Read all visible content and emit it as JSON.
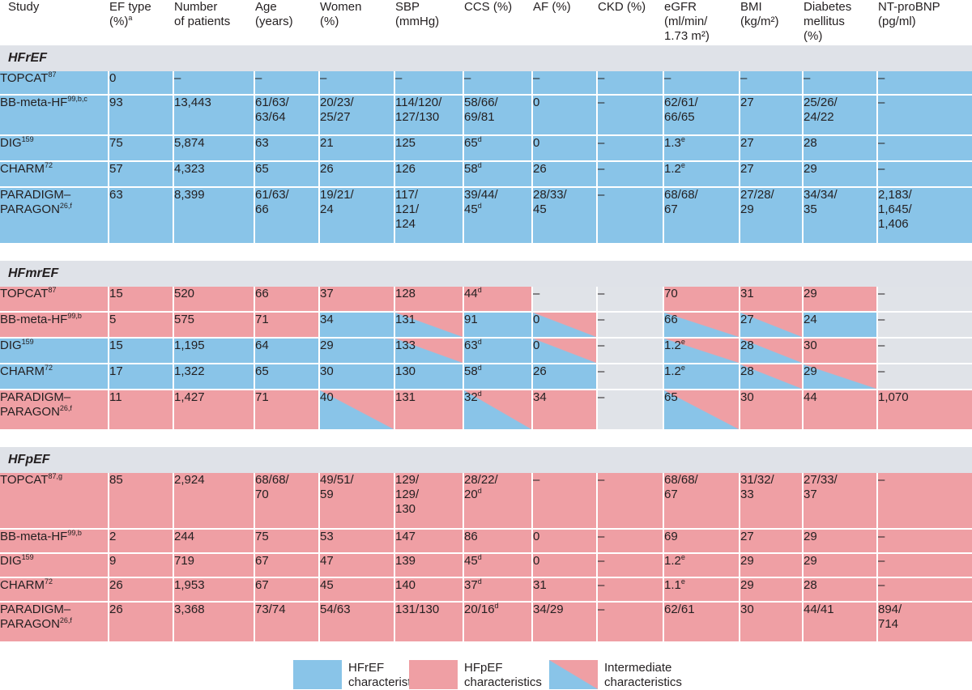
{
  "headers": {
    "study": "Study",
    "ef_type": [
      "EF type",
      "(%)"
    ],
    "ef_type_sup": "a",
    "n_patients": [
      "Number",
      "of patients"
    ],
    "age": [
      "Age",
      "(years)"
    ],
    "women": [
      "Women",
      "(%)"
    ],
    "sbp": [
      "SBP",
      "(mmHg)"
    ],
    "ccs": "CCS (%)",
    "af": "AF (%)",
    "ckd": "CKD (%)",
    "egfr": [
      "eGFR",
      "(ml/min/",
      "1.73 m²)"
    ],
    "bmi": [
      "BMI",
      "(kg/m²)"
    ],
    "diabetes": [
      "Diabetes",
      "mellitus",
      "(%)"
    ],
    "ntprobnp": [
      "NT-proBNP",
      "(pg/ml)"
    ]
  },
  "colors": {
    "hfref": "#89c4e8",
    "hfpef": "#ef9fa4",
    "neutral": "#e0e3e8",
    "section": "#dfe2e8"
  },
  "sections": [
    {
      "title": "HFrEF",
      "rows": [
        {
          "h": 30,
          "study": "TOPCAT",
          "ref": "87",
          "cells": [
            [
              "0",
              "b"
            ],
            [
              "–",
              "b"
            ],
            [
              "–",
              "b"
            ],
            [
              "–",
              "b"
            ],
            [
              "–",
              "b"
            ],
            [
              "–",
              "b"
            ],
            [
              "–",
              "b"
            ],
            [
              "–",
              "b"
            ],
            [
              "–",
              "b"
            ],
            [
              "–",
              "b"
            ],
            [
              "–",
              "b"
            ],
            [
              "–",
              "b"
            ]
          ]
        },
        {
          "h": 50,
          "study": "BB-meta-HF",
          "ref": "99,b,c",
          "cells": [
            [
              "93",
              "b"
            ],
            [
              "13,443",
              "b"
            ],
            [
              "61/63/\n63/64",
              "b"
            ],
            [
              "20/23/\n25/27",
              "b"
            ],
            [
              "114/120/\n127/130",
              "b"
            ],
            [
              "58/66/\n69/81",
              "b"
            ],
            [
              "0",
              "b"
            ],
            [
              "–",
              "b"
            ],
            [
              "62/61/\n66/65",
              "b"
            ],
            [
              "27",
              "b"
            ],
            [
              "25/26/\n24/22",
              "b"
            ],
            [
              "–",
              "b"
            ]
          ]
        },
        {
          "h": 32,
          "study": "DIG",
          "ref": "159",
          "cells": [
            [
              "75",
              "b"
            ],
            [
              "5,874",
              "b"
            ],
            [
              "63",
              "b"
            ],
            [
              "21",
              "b"
            ],
            [
              "125",
              "b"
            ],
            [
              "65|d",
              "b"
            ],
            [
              "0",
              "b"
            ],
            [
              "–",
              "b"
            ],
            [
              "1.3|e",
              "b"
            ],
            [
              "27",
              "b"
            ],
            [
              "28",
              "b"
            ],
            [
              "–",
              "b"
            ]
          ]
        },
        {
          "h": 32,
          "study": "CHARM",
          "ref": "72",
          "cells": [
            [
              "57",
              "b"
            ],
            [
              "4,323",
              "b"
            ],
            [
              "65",
              "b"
            ],
            [
              "26",
              "b"
            ],
            [
              "126",
              "b"
            ],
            [
              "58|d",
              "b"
            ],
            [
              "26",
              "b"
            ],
            [
              "–",
              "b"
            ],
            [
              "1.2|e",
              "b"
            ],
            [
              "27",
              "b"
            ],
            [
              "29",
              "b"
            ],
            [
              "–",
              "b"
            ]
          ]
        },
        {
          "h": 70,
          "study": "PARADIGM–\nPARAGON",
          "ref": "26,f",
          "cells": [
            [
              "63",
              "b"
            ],
            [
              "8,399",
              "b"
            ],
            [
              "61/63/\n66",
              "b"
            ],
            [
              "19/21/\n24",
              "b"
            ],
            [
              "117/\n121/\n124",
              "b"
            ],
            [
              "39/44/\n45|d",
              "b"
            ],
            [
              "28/33/\n45",
              "b"
            ],
            [
              "–",
              "b"
            ],
            [
              "68/68/\n67",
              "b"
            ],
            [
              "27/28/\n29",
              "b"
            ],
            [
              "34/34/\n35",
              "b"
            ],
            [
              "2,183/\n1,645/\n1,406",
              "b"
            ]
          ]
        }
      ]
    },
    {
      "title": "HFmrEF",
      "rows": [
        {
          "h": 32,
          "study": "TOPCAT",
          "ref": "87",
          "cells": [
            [
              "15",
              "p"
            ],
            [
              "520",
              "p"
            ],
            [
              "66",
              "p"
            ],
            [
              "37",
              "p"
            ],
            [
              "128",
              "p"
            ],
            [
              "44|d",
              "p"
            ],
            [
              "–",
              "g"
            ],
            [
              "–",
              "g"
            ],
            [
              "70",
              "p"
            ],
            [
              "31",
              "p"
            ],
            [
              "29",
              "p"
            ],
            [
              "–",
              "g"
            ]
          ]
        },
        {
          "h": 32,
          "study": "BB-meta-HF",
          "ref": "99,b",
          "cells": [
            [
              "5",
              "p"
            ],
            [
              "575",
              "p"
            ],
            [
              "71",
              "p"
            ],
            [
              "34",
              "b"
            ],
            [
              "131",
              "t"
            ],
            [
              "91",
              "b"
            ],
            [
              "0",
              "t"
            ],
            [
              "–",
              "g"
            ],
            [
              "66",
              "t"
            ],
            [
              "27",
              "t"
            ],
            [
              "24",
              "b"
            ],
            [
              "–",
              "g"
            ]
          ]
        },
        {
          "h": 32,
          "study": "DIG",
          "ref": "159",
          "cells": [
            [
              "15",
              "b"
            ],
            [
              "1,195",
              "b"
            ],
            [
              "64",
              "b"
            ],
            [
              "29",
              "b"
            ],
            [
              "133",
              "t"
            ],
            [
              "63|d",
              "b"
            ],
            [
              "0",
              "t"
            ],
            [
              "–",
              "g"
            ],
            [
              "1.2|e",
              "t"
            ],
            [
              "28",
              "t"
            ],
            [
              "30",
              "p"
            ],
            [
              "–",
              "g"
            ]
          ]
        },
        {
          "h": 32,
          "study": "CHARM",
          "ref": "72",
          "cells": [
            [
              "17",
              "b"
            ],
            [
              "1,322",
              "b"
            ],
            [
              "65",
              "b"
            ],
            [
              "30",
              "b"
            ],
            [
              "130",
              "b"
            ],
            [
              "58|d",
              "b"
            ],
            [
              "26",
              "b"
            ],
            [
              "–",
              "g"
            ],
            [
              "1.2|e",
              "b"
            ],
            [
              "28",
              "t"
            ],
            [
              "29",
              "t"
            ],
            [
              "–",
              "g"
            ]
          ]
        },
        {
          "h": 50,
          "study": "PARADIGM–\nPARAGON",
          "ref": "26,f",
          "cells": [
            [
              "11",
              "p"
            ],
            [
              "1,427",
              "p"
            ],
            [
              "71",
              "p"
            ],
            [
              "40",
              "t"
            ],
            [
              "131",
              "p"
            ],
            [
              "32|d",
              "t"
            ],
            [
              "34",
              "p"
            ],
            [
              "–",
              "g"
            ],
            [
              "65",
              "t"
            ],
            [
              "30",
              "p"
            ],
            [
              "44",
              "p"
            ],
            [
              "1,070",
              "p"
            ]
          ]
        }
      ]
    },
    {
      "title": "HFpEF",
      "rows": [
        {
          "h": 70,
          "study": "TOPCAT",
          "ref": "87,g",
          "cells": [
            [
              "85",
              "p"
            ],
            [
              "2,924",
              "p"
            ],
            [
              "68/68/\n70",
              "p"
            ],
            [
              "49/51/\n59",
              "p"
            ],
            [
              "129/\n129/\n130",
              "p"
            ],
            [
              "28/22/\n20|d",
              "p"
            ],
            [
              "–",
              "p"
            ],
            [
              "–",
              "p"
            ],
            [
              "68/68/\n67",
              "p"
            ],
            [
              "31/32/\n33",
              "p"
            ],
            [
              "27/33/\n37",
              "p"
            ],
            [
              "–",
              "p"
            ]
          ]
        },
        {
          "h": 30,
          "study": "BB-meta-HF",
          "ref": "99,b",
          "cells": [
            [
              "2",
              "p"
            ],
            [
              "244",
              "p"
            ],
            [
              "75",
              "p"
            ],
            [
              "53",
              "p"
            ],
            [
              "147",
              "p"
            ],
            [
              "86",
              "p"
            ],
            [
              "0",
              "p"
            ],
            [
              "–",
              "p"
            ],
            [
              "69",
              "p"
            ],
            [
              "27",
              "p"
            ],
            [
              "29",
              "p"
            ],
            [
              "–",
              "p"
            ]
          ]
        },
        {
          "h": 30,
          "study": "DIG",
          "ref": "159",
          "cells": [
            [
              "9",
              "p"
            ],
            [
              "719",
              "p"
            ],
            [
              "67",
              "p"
            ],
            [
              "47",
              "p"
            ],
            [
              "139",
              "p"
            ],
            [
              "45|d",
              "p"
            ],
            [
              "0",
              "p"
            ],
            [
              "–",
              "p"
            ],
            [
              "1.2|e",
              "p"
            ],
            [
              "29",
              "p"
            ],
            [
              "29",
              "p"
            ],
            [
              "–",
              "p"
            ]
          ]
        },
        {
          "h": 30,
          "study": "CHARM",
          "ref": "72",
          "cells": [
            [
              "26",
              "p"
            ],
            [
              "1,953",
              "p"
            ],
            [
              "67",
              "p"
            ],
            [
              "45",
              "p"
            ],
            [
              "140",
              "p"
            ],
            [
              "37|d",
              "p"
            ],
            [
              "31",
              "p"
            ],
            [
              "–",
              "p"
            ],
            [
              "1.1|e",
              "p"
            ],
            [
              "29",
              "p"
            ],
            [
              "28",
              "p"
            ],
            [
              "–",
              "p"
            ]
          ]
        },
        {
          "h": 50,
          "study": "PARADIGM–\nPARAGON",
          "ref": "26,f",
          "cells": [
            [
              "26",
              "p"
            ],
            [
              "3,368",
              "p"
            ],
            [
              "73/74",
              "p"
            ],
            [
              "54/63",
              "p"
            ],
            [
              "131/130",
              "p"
            ],
            [
              "20/16|d",
              "p"
            ],
            [
              "34/29",
              "p"
            ],
            [
              "–",
              "p"
            ],
            [
              "62/61",
              "p"
            ],
            [
              "30",
              "p"
            ],
            [
              "44/41",
              "p"
            ],
            [
              "894/\n714",
              "p"
            ]
          ]
        }
      ]
    }
  ],
  "legend": [
    {
      "swatch": "b",
      "text": "HFrEF\ncharacteristics"
    },
    {
      "swatch": "p",
      "text": "HFpEF\ncharacteristics"
    },
    {
      "swatch": "t",
      "text": "Intermediate\ncharacteristics"
    }
  ]
}
